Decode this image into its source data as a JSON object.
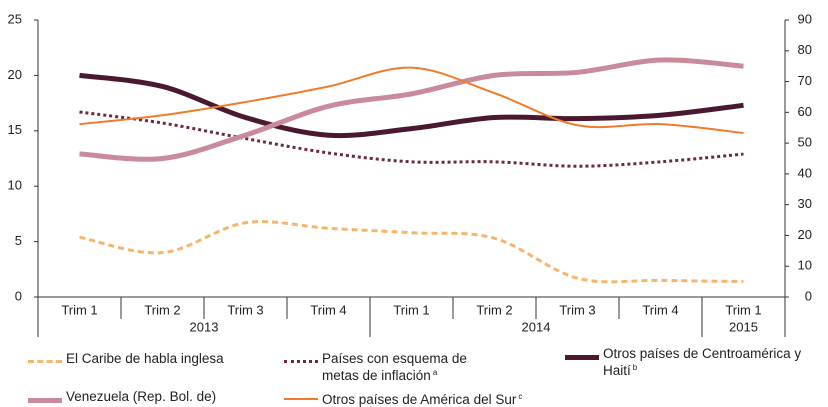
{
  "chart_data": {
    "type": "line",
    "categories": [
      "Trim 1",
      "Trim 2",
      "Trim 3",
      "Trim 4",
      "Trim 1",
      "Trim 2",
      "Trim 3",
      "Trim 4",
      "Trim 1"
    ],
    "groups": [
      {
        "label": "2013",
        "start": 0,
        "end": 3
      },
      {
        "label": "2014",
        "start": 4,
        "end": 7
      },
      {
        "label": "2015",
        "start": 8,
        "end": 8
      }
    ],
    "ylim": [
      0,
      25
    ],
    "yticks": [
      0,
      5,
      10,
      15,
      20,
      25
    ],
    "y2lim": [
      0,
      90
    ],
    "y2ticks": [
      0,
      10,
      20,
      30,
      40,
      50,
      60,
      70,
      80,
      90
    ],
    "grid": false,
    "series": [
      {
        "name": "El Caribe de habla inglesa",
        "color": "#f5b56b",
        "style": "dashed",
        "values": [
          5.4,
          4.0,
          6.7,
          6.2,
          5.8,
          5.3,
          1.7,
          1.5,
          1.4
        ]
      },
      {
        "name": "Países con esquema de metas de inflación",
        "note": "a",
        "color": "#6b2a40",
        "style": "dotted",
        "values": [
          16.7,
          15.7,
          14.3,
          13.0,
          12.2,
          12.2,
          11.8,
          12.2,
          12.9
        ]
      },
      {
        "name": "Otros países de Centroamérica y Haití",
        "note": "b",
        "color": "#4a1830",
        "style": "thick",
        "values": [
          20.0,
          19.0,
          16.2,
          14.6,
          15.2,
          16.2,
          16.1,
          16.4,
          17.3
        ]
      },
      {
        "name": "Venezuela (Rep. Bol. de)",
        "color": "#c98a9b",
        "style": "thick",
        "axis": "y2",
        "values": [
          46.5,
          45,
          52.6,
          62,
          66,
          72,
          73,
          77,
          75
        ]
      },
      {
        "name": "Otros países de América del Sur",
        "note": "c",
        "color": "#f07b2c",
        "style": "solid",
        "values": [
          15.6,
          16.4,
          17.6,
          19.0,
          20.7,
          18.4,
          15.5,
          15.6,
          14.8
        ]
      }
    ]
  }
}
